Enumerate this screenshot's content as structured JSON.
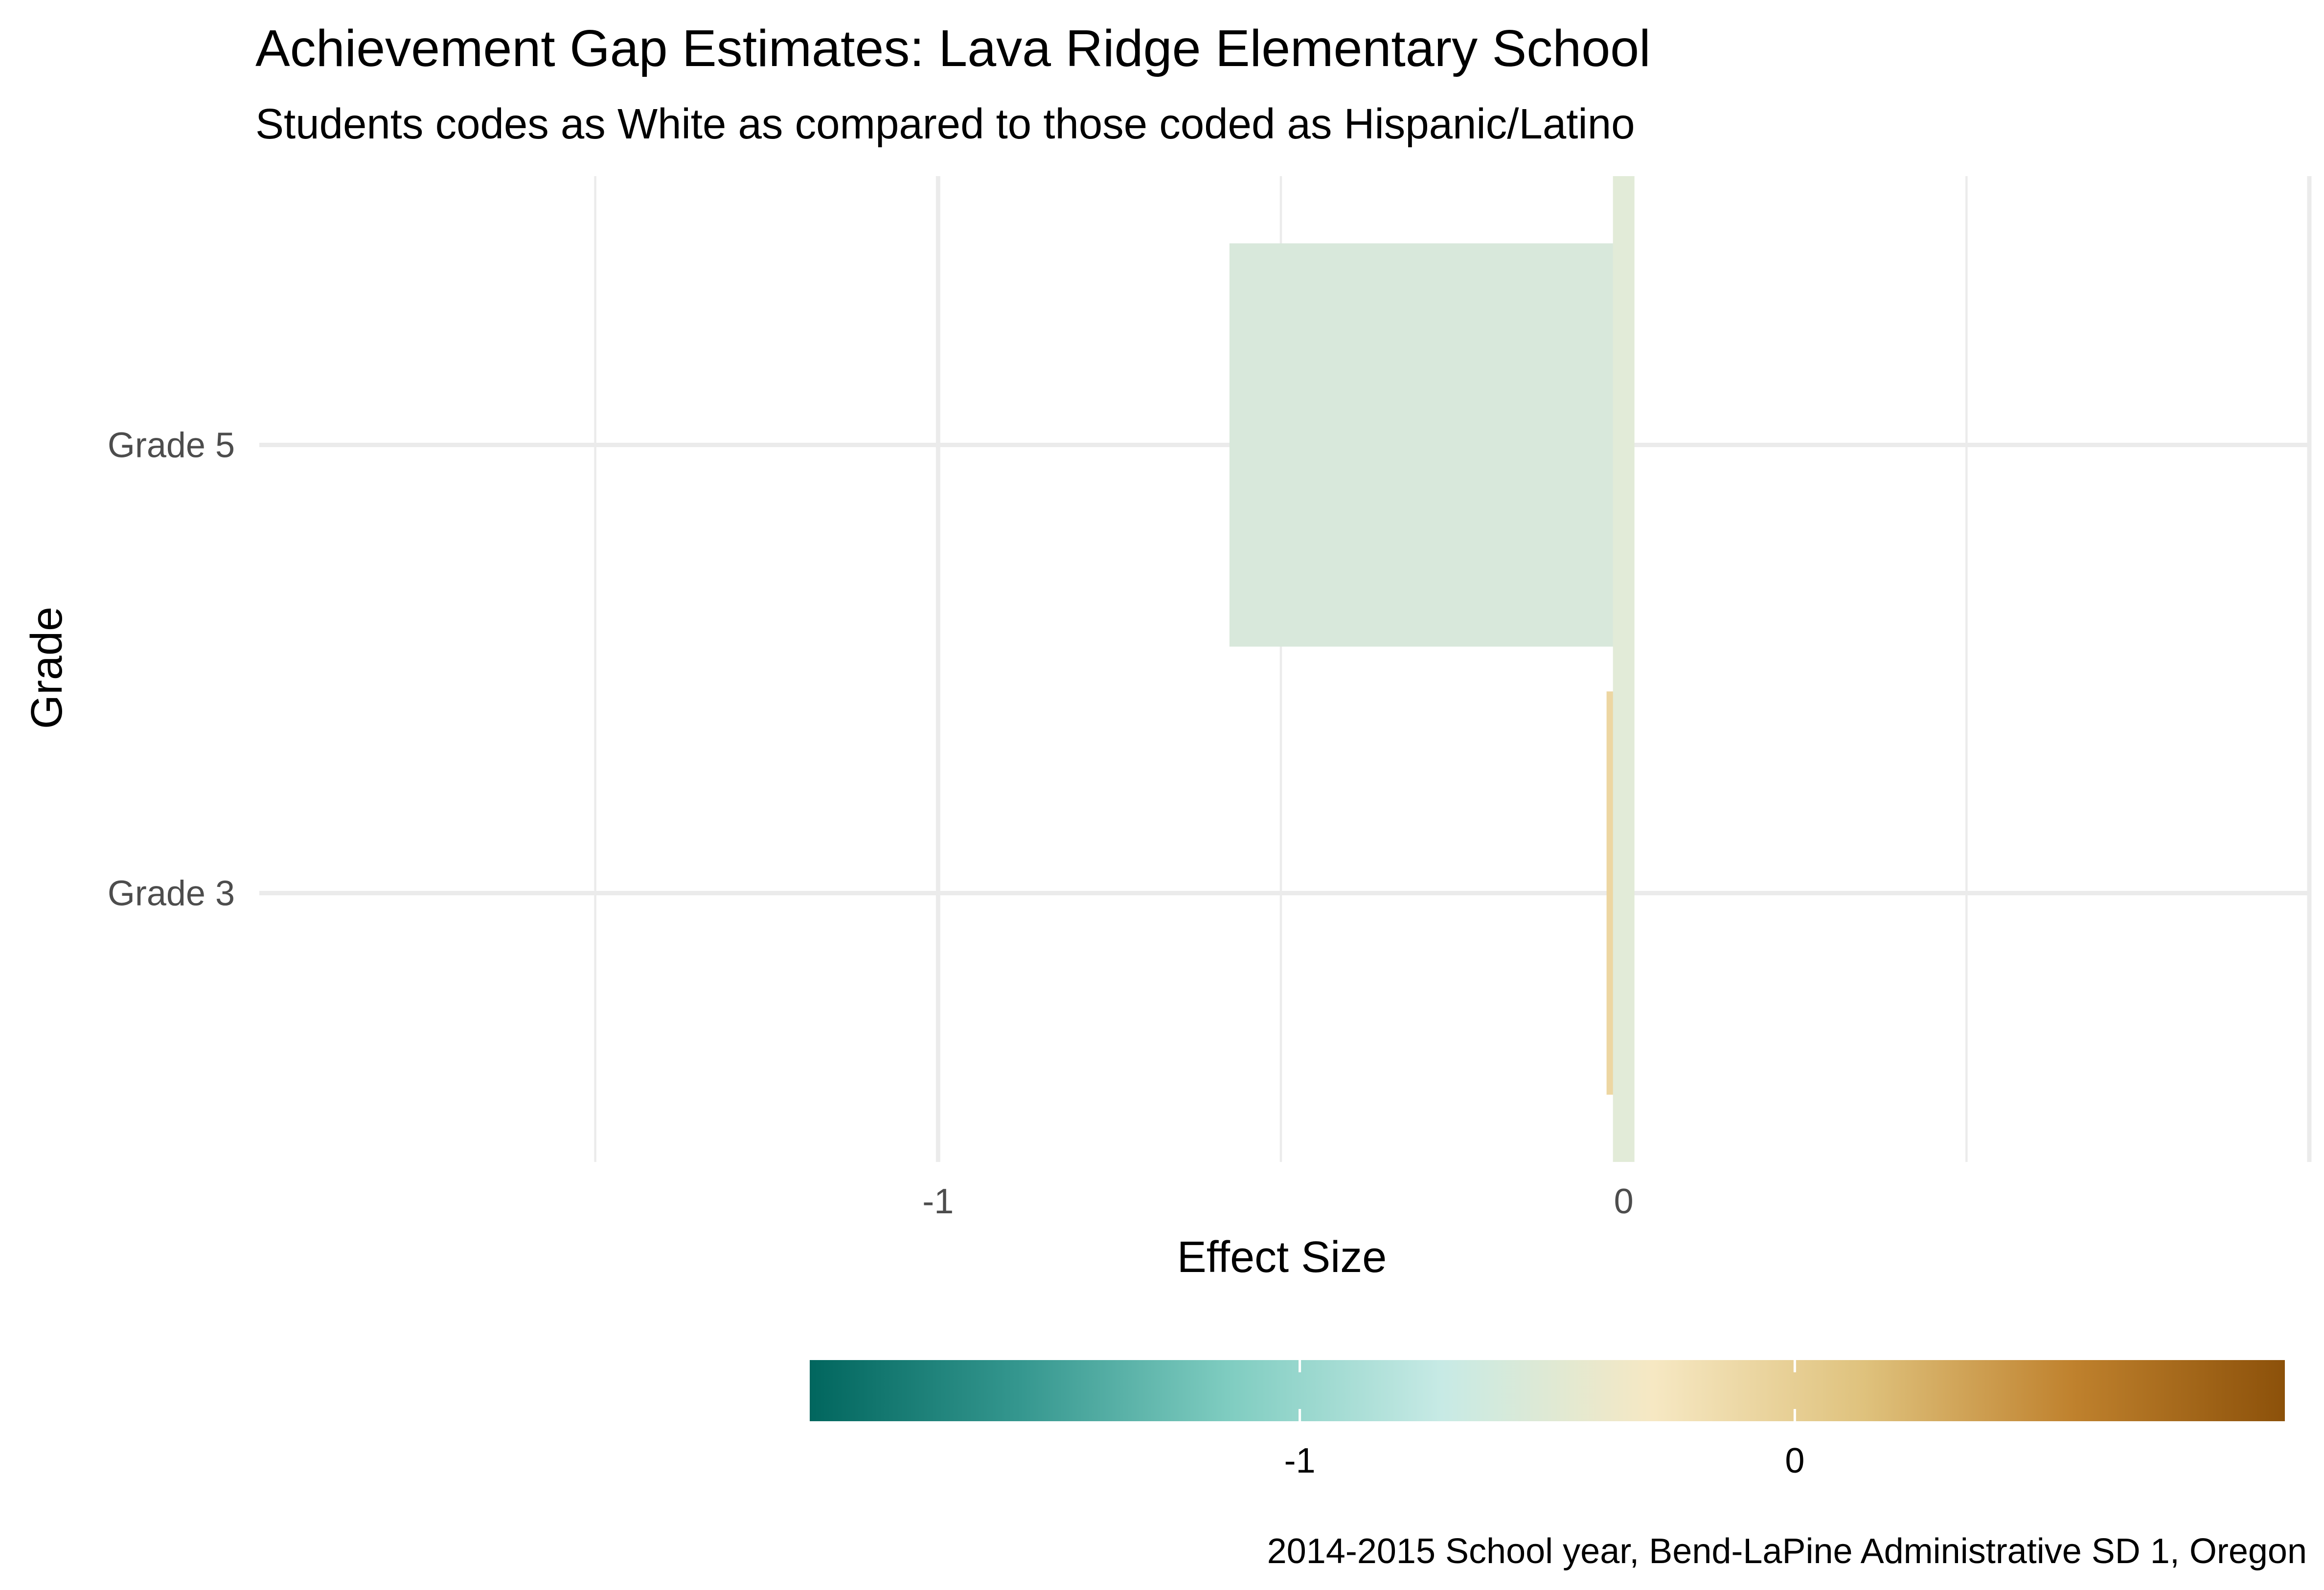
{
  "chart_data": {
    "type": "bar",
    "orientation": "horizontal",
    "title": "Achievement Gap Estimates: Lava Ridge Elementary School",
    "subtitle": "Students codes as White as compared to those coded as Hispanic/Latino",
    "xlabel": "Effect Size",
    "ylabel": "Grade",
    "caption": "2014-2015 School year, Bend-LaPine Administrative SD 1, Oregon",
    "categories": [
      "Grade 3",
      "Grade 5"
    ],
    "values": [
      -0.025,
      -0.575
    ],
    "bar_colors": [
      "#EDD6A2",
      "#D8E8DB"
    ],
    "xlim": [
      -1.99,
      1.0
    ],
    "x_ticks": [
      -1,
      0
    ],
    "x_tick_labels": [
      "-1",
      "0"
    ],
    "reference_line": {
      "x": 0,
      "color": "#E2EBD8"
    },
    "grid": true,
    "legend": {
      "type": "colorbar",
      "position": "bottom",
      "range": [
        -1.99,
        0.99
      ],
      "ticks": [
        -1,
        0
      ],
      "tick_labels": [
        "-1",
        "0"
      ],
      "colors": [
        "#01665E",
        "#35978F",
        "#80CDC1",
        "#C7EAE5",
        "#F6E8C3",
        "#DFC27D",
        "#BF812D",
        "#8C510A"
      ]
    }
  }
}
